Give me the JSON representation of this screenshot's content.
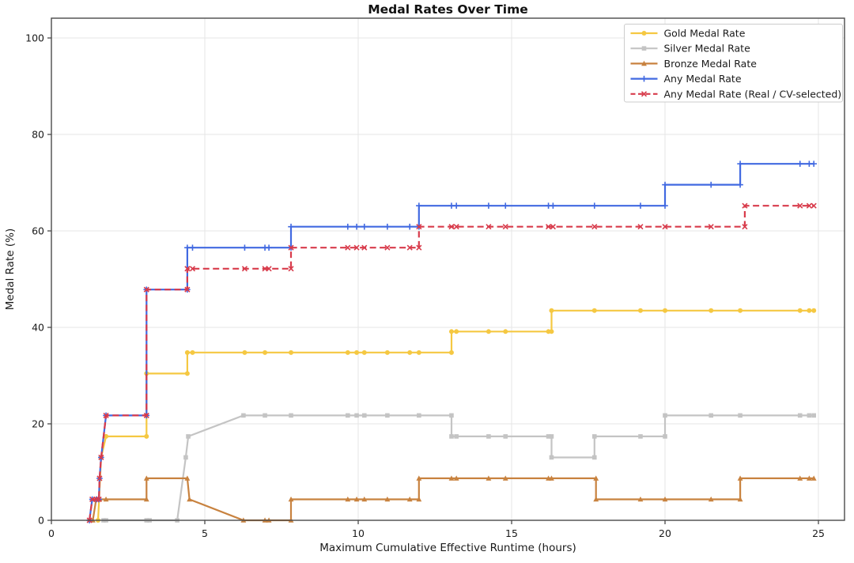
{
  "title": "Medal Rates Over Time",
  "axes": {
    "xlabel": "Maximum Cumulative Effective Runtime (hours)",
    "ylabel": "Medal Rate (%)"
  },
  "colors": {
    "gold": "#F5C842",
    "silver": "#C4C4C4",
    "bronze": "#C8823F",
    "blue": "#4169E1",
    "red": "#D83B4B",
    "grid": "#E6E6E6",
    "spine": "#4a4a4a",
    "tick_text": "#1a1a1a",
    "legend_border": "#cccccc"
  },
  "chart_data": {
    "type": "line",
    "title": "Medal Rates Over Time",
    "xlabel": "Maximum Cumulative Effective Runtime (hours)",
    "ylabel": "Medal Rate (%)",
    "xlim": [
      0,
      25.85
    ],
    "ylim": [
      0,
      104.1
    ],
    "xticks": [
      0,
      5,
      10,
      15,
      20,
      25
    ],
    "yticks": [
      0,
      20,
      40,
      60,
      80,
      100
    ],
    "grid": true,
    "legend_position": "top-right",
    "series": [
      {
        "name": "Gold Medal Rate",
        "color": "#F5C842",
        "marker": "circle",
        "dash": null,
        "points": [
          [
            1.52,
            0
          ],
          [
            1.62,
            13.04
          ],
          [
            1.78,
            17.39
          ],
          [
            3.1,
            17.39
          ],
          [
            3.1,
            30.43
          ],
          [
            4.43,
            30.43
          ],
          [
            4.43,
            34.78
          ],
          [
            4.6,
            34.78
          ],
          [
            6.3,
            34.78
          ],
          [
            6.96,
            34.78
          ],
          [
            7.81,
            34.78
          ],
          [
            9.66,
            34.78
          ],
          [
            9.95,
            34.78
          ],
          [
            10.2,
            34.78
          ],
          [
            10.95,
            34.78
          ],
          [
            11.68,
            34.78
          ],
          [
            11.98,
            34.78
          ],
          [
            13.04,
            34.78
          ],
          [
            13.04,
            39.13
          ],
          [
            13.2,
            39.13
          ],
          [
            14.25,
            39.13
          ],
          [
            14.8,
            39.13
          ],
          [
            16.2,
            39.13
          ],
          [
            16.3,
            39.13
          ],
          [
            16.3,
            43.48
          ],
          [
            17.7,
            43.48
          ],
          [
            19.2,
            43.48
          ],
          [
            20.0,
            43.48
          ],
          [
            21.5,
            43.48
          ],
          [
            22.45,
            43.48
          ],
          [
            24.4,
            43.48
          ],
          [
            24.7,
            43.48
          ],
          [
            24.85,
            43.48
          ]
        ]
      },
      {
        "name": "Silver Medal Rate",
        "color": "#C4C4C4",
        "marker": "square",
        "dash": null,
        "points": [
          [
            1.7,
            0
          ],
          [
            1.78,
            0
          ],
          [
            3.1,
            0
          ],
          [
            3.2,
            0
          ],
          [
            4.1,
            0
          ],
          [
            4.38,
            13.04
          ],
          [
            4.46,
            17.39
          ],
          [
            6.26,
            21.74
          ],
          [
            6.96,
            21.74
          ],
          [
            7.81,
            21.74
          ],
          [
            9.66,
            21.74
          ],
          [
            9.95,
            21.74
          ],
          [
            10.2,
            21.74
          ],
          [
            10.95,
            21.74
          ],
          [
            11.98,
            21.74
          ],
          [
            13.04,
            21.74
          ],
          [
            13.04,
            17.39
          ],
          [
            13.2,
            17.39
          ],
          [
            14.25,
            17.39
          ],
          [
            14.8,
            17.39
          ],
          [
            16.2,
            17.39
          ],
          [
            16.3,
            17.39
          ],
          [
            16.3,
            13.04
          ],
          [
            17.7,
            13.04
          ],
          [
            17.7,
            17.39
          ],
          [
            19.2,
            17.39
          ],
          [
            20.0,
            17.39
          ],
          [
            20.0,
            21.74
          ],
          [
            21.5,
            21.74
          ],
          [
            22.45,
            21.74
          ],
          [
            24.4,
            21.74
          ],
          [
            24.7,
            21.74
          ],
          [
            24.85,
            21.74
          ]
        ]
      },
      {
        "name": "Bronze Medal Rate",
        "color": "#C8823F",
        "marker": "triangle",
        "dash": null,
        "points": [
          [
            1.35,
            0
          ],
          [
            1.46,
            4.35
          ],
          [
            1.57,
            4.35
          ],
          [
            1.78,
            4.35
          ],
          [
            3.1,
            4.35
          ],
          [
            3.1,
            8.7
          ],
          [
            4.43,
            8.7
          ],
          [
            4.5,
            4.35
          ],
          [
            6.26,
            0
          ],
          [
            6.96,
            0
          ],
          [
            7.09,
            0
          ],
          [
            7.81,
            0
          ],
          [
            7.81,
            4.35
          ],
          [
            9.66,
            4.35
          ],
          [
            9.95,
            4.35
          ],
          [
            10.2,
            4.35
          ],
          [
            10.95,
            4.35
          ],
          [
            11.68,
            4.35
          ],
          [
            11.98,
            4.35
          ],
          [
            11.98,
            8.7
          ],
          [
            13.04,
            8.7
          ],
          [
            13.2,
            8.7
          ],
          [
            14.25,
            8.7
          ],
          [
            14.8,
            8.7
          ],
          [
            16.2,
            8.7
          ],
          [
            16.3,
            8.7
          ],
          [
            17.75,
            8.7
          ],
          [
            17.75,
            4.35
          ],
          [
            19.2,
            4.35
          ],
          [
            20.0,
            4.35
          ],
          [
            21.5,
            4.35
          ],
          [
            22.45,
            4.35
          ],
          [
            22.45,
            8.7
          ],
          [
            24.4,
            8.7
          ],
          [
            24.7,
            8.7
          ],
          [
            24.85,
            8.7
          ]
        ]
      },
      {
        "name": "Any Medal Rate",
        "color": "#4169E1",
        "marker": "plus",
        "dash": null,
        "points": [
          [
            1.24,
            0
          ],
          [
            1.33,
            4.35
          ],
          [
            1.47,
            4.35
          ],
          [
            1.55,
            4.35
          ],
          [
            1.57,
            8.7
          ],
          [
            1.62,
            13.04
          ],
          [
            1.78,
            21.74
          ],
          [
            3.1,
            21.74
          ],
          [
            3.1,
            47.83
          ],
          [
            4.43,
            47.83
          ],
          [
            4.43,
            56.52
          ],
          [
            4.6,
            56.52
          ],
          [
            6.3,
            56.52
          ],
          [
            6.96,
            56.52
          ],
          [
            7.09,
            56.52
          ],
          [
            7.81,
            56.52
          ],
          [
            7.81,
            60.87
          ],
          [
            9.66,
            60.87
          ],
          [
            9.95,
            60.87
          ],
          [
            10.2,
            60.87
          ],
          [
            10.95,
            60.87
          ],
          [
            11.68,
            60.87
          ],
          [
            11.98,
            60.87
          ],
          [
            11.98,
            65.22
          ],
          [
            13.04,
            65.22
          ],
          [
            13.2,
            65.22
          ],
          [
            14.25,
            65.22
          ],
          [
            14.8,
            65.22
          ],
          [
            16.2,
            65.22
          ],
          [
            16.35,
            65.22
          ],
          [
            17.7,
            65.22
          ],
          [
            19.2,
            65.22
          ],
          [
            20.0,
            65.22
          ],
          [
            20.0,
            69.57
          ],
          [
            21.5,
            69.57
          ],
          [
            22.45,
            69.57
          ],
          [
            22.45,
            73.91
          ],
          [
            24.4,
            73.91
          ],
          [
            24.7,
            73.91
          ],
          [
            24.85,
            73.91
          ]
        ]
      },
      {
        "name": "Any Medal Rate (Real / CV-selected)",
        "color": "#D83B4B",
        "marker": "x",
        "dash": "8 4.5",
        "points": [
          [
            1.24,
            0
          ],
          [
            1.33,
            4.35
          ],
          [
            1.47,
            4.35
          ],
          [
            1.55,
            4.35
          ],
          [
            1.57,
            8.7
          ],
          [
            1.62,
            13.04
          ],
          [
            1.78,
            21.74
          ],
          [
            3.1,
            21.74
          ],
          [
            3.1,
            47.83
          ],
          [
            4.43,
            47.83
          ],
          [
            4.43,
            52.17
          ],
          [
            4.6,
            52.17
          ],
          [
            6.3,
            52.17
          ],
          [
            6.96,
            52.17
          ],
          [
            7.09,
            52.17
          ],
          [
            7.81,
            52.17
          ],
          [
            7.81,
            56.52
          ],
          [
            9.66,
            56.52
          ],
          [
            9.95,
            56.52
          ],
          [
            10.2,
            56.52
          ],
          [
            10.95,
            56.52
          ],
          [
            11.68,
            56.52
          ],
          [
            11.98,
            56.52
          ],
          [
            11.98,
            60.87
          ],
          [
            13.04,
            60.87
          ],
          [
            13.2,
            60.87
          ],
          [
            14.25,
            60.87
          ],
          [
            14.8,
            60.87
          ],
          [
            16.2,
            60.87
          ],
          [
            16.35,
            60.87
          ],
          [
            17.7,
            60.87
          ],
          [
            19.2,
            60.87
          ],
          [
            20.0,
            60.87
          ],
          [
            21.5,
            60.87
          ],
          [
            22.6,
            60.87
          ],
          [
            22.6,
            65.22
          ],
          [
            24.4,
            65.22
          ],
          [
            24.7,
            65.22
          ],
          [
            24.85,
            65.22
          ]
        ]
      }
    ]
  }
}
